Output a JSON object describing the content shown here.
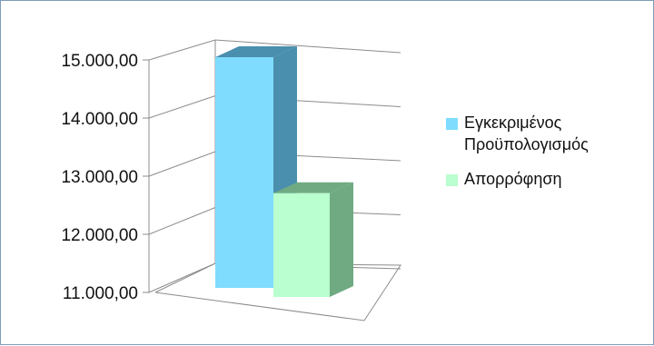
{
  "chart_data": {
    "type": "bar",
    "title": "",
    "xlabel": "",
    "ylabel": "",
    "categories": [
      ""
    ],
    "series": [
      {
        "name": "Εγκεκριμένος Προϋπολογισμός",
        "values": [
          15000
        ],
        "color": "#7fdcff"
      },
      {
        "name": "Απορρόφηση",
        "values": [
          12800
        ],
        "color": "#b9ffcf"
      }
    ],
    "ylim": [
      11000,
      15000
    ],
    "yticks": [
      "11.000,00",
      "12.000,00",
      "13.000,00",
      "14.000,00",
      "15.000,00"
    ],
    "grid": true,
    "three_d": true,
    "legend_position": "right"
  },
  "colors": {
    "grid_line": "#8c8c8c",
    "border": "#7f9db9"
  }
}
